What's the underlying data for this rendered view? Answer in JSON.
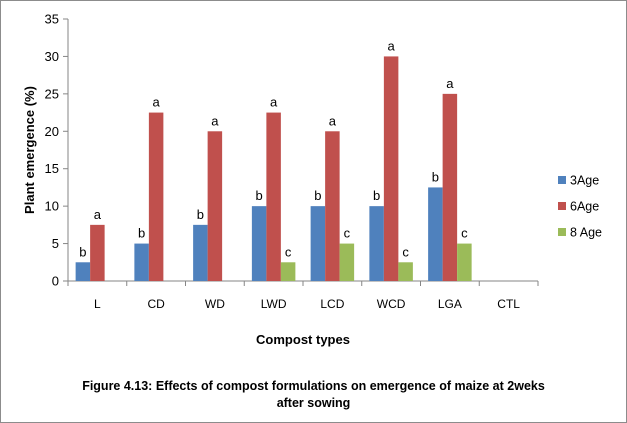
{
  "chart_data": {
    "type": "bar",
    "categories": [
      "L",
      "CD",
      "WD",
      "LWD",
      "LCD",
      "WCD",
      "LGA",
      "CTL"
    ],
    "series": [
      {
        "name": "3Age",
        "color": "#4f81bd",
        "values": [
          2.5,
          5,
          7.5,
          10,
          10,
          10,
          12.5,
          0
        ],
        "labels": [
          "b",
          "b",
          "b",
          "b",
          "b",
          "b",
          "b",
          ""
        ]
      },
      {
        "name": "6Age",
        "color": "#c0504d",
        "values": [
          7.5,
          22.5,
          20,
          22.5,
          20,
          30,
          25,
          0
        ],
        "labels": [
          "a",
          "a",
          "a",
          "a",
          "a",
          "a",
          "a",
          ""
        ]
      },
      {
        "name": "8 Age",
        "color": "#9bbb59",
        "values": [
          0,
          0,
          0,
          2.5,
          5,
          2.5,
          5,
          0
        ],
        "labels": [
          "",
          "",
          "",
          "c",
          "c",
          "c",
          "c",
          ""
        ]
      }
    ],
    "xlabel": "Compost types",
    "ylabel": "Plant  emergence (%)",
    "ylim": [
      0,
      35
    ],
    "yticks": [
      0,
      5,
      10,
      15,
      20,
      25,
      30,
      35
    ],
    "grid": false,
    "legend": "right"
  },
  "caption": {
    "line1": "Figure 4.13: Effects of compost formulations on emergence of maize at  2weks",
    "line2": "after sowing"
  }
}
